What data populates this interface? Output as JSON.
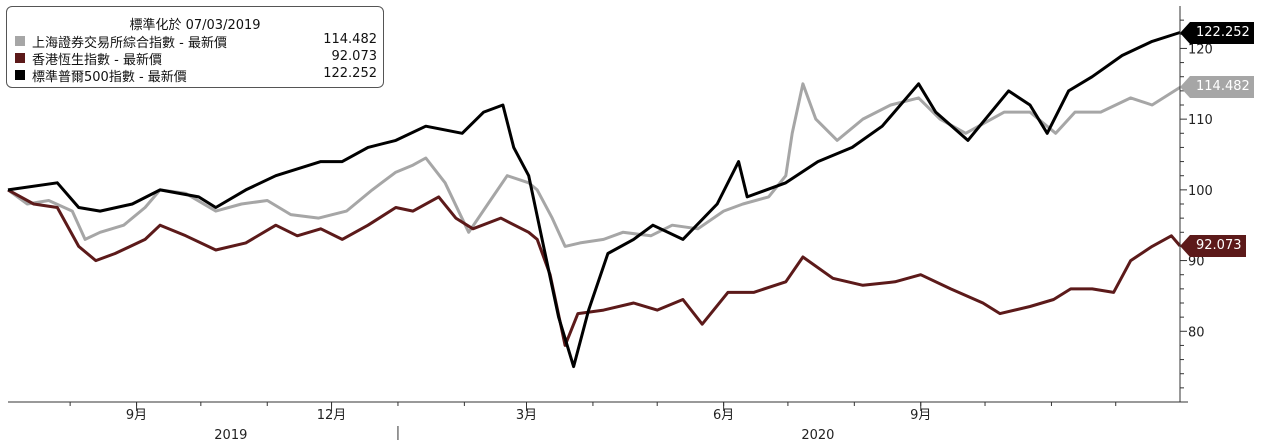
{
  "legend": {
    "title": "標準化於 07/03/2019",
    "items": [
      {
        "name": "上海證券交易所綜合指數 - 最新價",
        "value": "114.482",
        "color": "#a6a6a6"
      },
      {
        "name": "香港恆生指數 - 最新價",
        "value": "92.073",
        "color": "#5c1a1a"
      },
      {
        "name": "標準普爾500指數 - 最新價",
        "value": "122.252",
        "color": "#000000"
      }
    ]
  },
  "chart_data": {
    "type": "line",
    "title": "",
    "xlabel": "",
    "ylabel": "",
    "ylim": [
      70,
      126
    ],
    "yticks": [
      80,
      90,
      100,
      110,
      120
    ],
    "x_range": [
      "2019-07-03",
      "2020-12-31"
    ],
    "xticks": [
      {
        "label": "9月",
        "date": "2019-09-01"
      },
      {
        "label": "12月",
        "date": "2019-12-01"
      },
      {
        "label": "3月",
        "date": "2020-03-01"
      },
      {
        "label": "6月",
        "date": "2020-06-01"
      },
      {
        "label": "9月",
        "date": "2020-09-01"
      }
    ],
    "year_labels": [
      {
        "label": "2019",
        "date": "2019-10-15"
      },
      {
        "label": "2020",
        "date": "2020-07-15"
      }
    ],
    "year_separator": "2020-01-01",
    "grid": false,
    "legend_position": "top-left",
    "series": [
      {
        "name": "上海證券交易所綜合指數 - 最新價",
        "color": "#a6a6a6",
        "last_value": "114.482",
        "points": [
          [
            "2019-07-03",
            100
          ],
          [
            "2019-07-12",
            98
          ],
          [
            "2019-07-22",
            98.5
          ],
          [
            "2019-08-02",
            97
          ],
          [
            "2019-08-08",
            93
          ],
          [
            "2019-08-15",
            94
          ],
          [
            "2019-08-26",
            95
          ],
          [
            "2019-09-05",
            97.5
          ],
          [
            "2019-09-12",
            100
          ],
          [
            "2019-09-24",
            99.5
          ],
          [
            "2019-10-08",
            97
          ],
          [
            "2019-10-20",
            98
          ],
          [
            "2019-11-01",
            98.5
          ],
          [
            "2019-11-12",
            96.5
          ],
          [
            "2019-11-25",
            96
          ],
          [
            "2019-12-08",
            97
          ],
          [
            "2019-12-20",
            100
          ],
          [
            "2019-12-31",
            102.5
          ],
          [
            "2020-01-08",
            103.5
          ],
          [
            "2020-01-14",
            104.5
          ],
          [
            "2020-01-23",
            101
          ],
          [
            "2020-02-03",
            94
          ],
          [
            "2020-02-12",
            98
          ],
          [
            "2020-02-21",
            102
          ],
          [
            "2020-03-02",
            101
          ],
          [
            "2020-03-06",
            100
          ],
          [
            "2020-03-13",
            96
          ],
          [
            "2020-03-19",
            92
          ],
          [
            "2020-03-26",
            92.5
          ],
          [
            "2020-04-06",
            93
          ],
          [
            "2020-04-15",
            94
          ],
          [
            "2020-04-28",
            93.5
          ],
          [
            "2020-05-08",
            95
          ],
          [
            "2020-05-20",
            94.5
          ],
          [
            "2020-06-01",
            97
          ],
          [
            "2020-06-10",
            98
          ],
          [
            "2020-06-22",
            99
          ],
          [
            "2020-06-30",
            102
          ],
          [
            "2020-07-03",
            108
          ],
          [
            "2020-07-08",
            115
          ],
          [
            "2020-07-14",
            110
          ],
          [
            "2020-07-24",
            107
          ],
          [
            "2020-08-05",
            110
          ],
          [
            "2020-08-18",
            112
          ],
          [
            "2020-08-31",
            113
          ],
          [
            "2020-09-10",
            110
          ],
          [
            "2020-09-22",
            108
          ],
          [
            "2020-10-10",
            111
          ],
          [
            "2020-10-22",
            111
          ],
          [
            "2020-11-03",
            108
          ],
          [
            "2020-11-12",
            111
          ],
          [
            "2020-11-24",
            111
          ],
          [
            "2020-12-08",
            113
          ],
          [
            "2020-12-18",
            112
          ],
          [
            "2020-12-31",
            114.482
          ]
        ]
      },
      {
        "name": "香港恆生指數 - 最新價",
        "color": "#5c1a1a",
        "last_value": "92.073",
        "points": [
          [
            "2019-07-03",
            100
          ],
          [
            "2019-07-15",
            98
          ],
          [
            "2019-07-26",
            97.5
          ],
          [
            "2019-08-05",
            92
          ],
          [
            "2019-08-13",
            90
          ],
          [
            "2019-08-22",
            91
          ],
          [
            "2019-09-05",
            93
          ],
          [
            "2019-09-12",
            95
          ],
          [
            "2019-09-24",
            93.5
          ],
          [
            "2019-10-08",
            91.5
          ],
          [
            "2019-10-22",
            92.5
          ],
          [
            "2019-11-05",
            95
          ],
          [
            "2019-11-15",
            93.5
          ],
          [
            "2019-11-26",
            94.5
          ],
          [
            "2019-12-06",
            93
          ],
          [
            "2019-12-18",
            95
          ],
          [
            "2019-12-31",
            97.5
          ],
          [
            "2020-01-08",
            97
          ],
          [
            "2020-01-20",
            99
          ],
          [
            "2020-01-28",
            96
          ],
          [
            "2020-02-05",
            94.5
          ],
          [
            "2020-02-18",
            96
          ],
          [
            "2020-03-02",
            94
          ],
          [
            "2020-03-06",
            93
          ],
          [
            "2020-03-12",
            88
          ],
          [
            "2020-03-19",
            78
          ],
          [
            "2020-03-25",
            82.5
          ],
          [
            "2020-04-06",
            83
          ],
          [
            "2020-04-20",
            84
          ],
          [
            "2020-05-01",
            83
          ],
          [
            "2020-05-13",
            84.5
          ],
          [
            "2020-05-22",
            81
          ],
          [
            "2020-06-03",
            85.5
          ],
          [
            "2020-06-15",
            85.5
          ],
          [
            "2020-06-30",
            87
          ],
          [
            "2020-07-08",
            90.5
          ],
          [
            "2020-07-22",
            87.5
          ],
          [
            "2020-08-05",
            86.5
          ],
          [
            "2020-08-20",
            87
          ],
          [
            "2020-09-01",
            88
          ],
          [
            "2020-09-15",
            86
          ],
          [
            "2020-09-30",
            84
          ],
          [
            "2020-10-08",
            82.5
          ],
          [
            "2020-10-22",
            83.5
          ],
          [
            "2020-11-02",
            84.5
          ],
          [
            "2020-11-10",
            86
          ],
          [
            "2020-11-20",
            86
          ],
          [
            "2020-11-30",
            85.5
          ],
          [
            "2020-12-08",
            90
          ],
          [
            "2020-12-18",
            92
          ],
          [
            "2020-12-27",
            93.5
          ],
          [
            "2020-12-31",
            92.073
          ]
        ]
      },
      {
        "name": "標準普爾500指數 - 最新價",
        "color": "#000000",
        "last_value": "122.252",
        "points": [
          [
            "2019-07-03",
            100
          ],
          [
            "2019-07-26",
            101
          ],
          [
            "2019-08-05",
            97.5
          ],
          [
            "2019-08-15",
            97
          ],
          [
            "2019-08-30",
            98
          ],
          [
            "2019-09-12",
            100
          ],
          [
            "2019-09-30",
            99
          ],
          [
            "2019-10-08",
            97.5
          ],
          [
            "2019-10-22",
            100
          ],
          [
            "2019-11-05",
            102
          ],
          [
            "2019-11-26",
            104
          ],
          [
            "2019-12-06",
            104
          ],
          [
            "2019-12-18",
            106
          ],
          [
            "2019-12-31",
            107
          ],
          [
            "2020-01-14",
            109
          ],
          [
            "2020-01-31",
            108
          ],
          [
            "2020-02-10",
            111
          ],
          [
            "2020-02-19",
            112
          ],
          [
            "2020-02-24",
            106
          ],
          [
            "2020-03-02",
            102
          ],
          [
            "2020-03-09",
            92
          ],
          [
            "2020-03-16",
            82
          ],
          [
            "2020-03-23",
            75
          ],
          [
            "2020-03-30",
            83
          ],
          [
            "2020-04-08",
            91
          ],
          [
            "2020-04-20",
            93
          ],
          [
            "2020-04-29",
            95
          ],
          [
            "2020-05-13",
            93
          ],
          [
            "2020-05-29",
            98
          ],
          [
            "2020-06-08",
            104
          ],
          [
            "2020-06-12",
            99
          ],
          [
            "2020-06-30",
            101
          ],
          [
            "2020-07-15",
            104
          ],
          [
            "2020-07-31",
            106
          ],
          [
            "2020-08-14",
            109
          ],
          [
            "2020-08-31",
            115
          ],
          [
            "2020-09-08",
            111
          ],
          [
            "2020-09-23",
            107
          ],
          [
            "2020-10-12",
            114
          ],
          [
            "2020-10-22",
            112
          ],
          [
            "2020-10-30",
            108
          ],
          [
            "2020-11-09",
            114
          ],
          [
            "2020-11-20",
            116
          ],
          [
            "2020-12-04",
            119
          ],
          [
            "2020-12-18",
            121
          ],
          [
            "2020-12-31",
            122.252
          ]
        ]
      }
    ]
  }
}
